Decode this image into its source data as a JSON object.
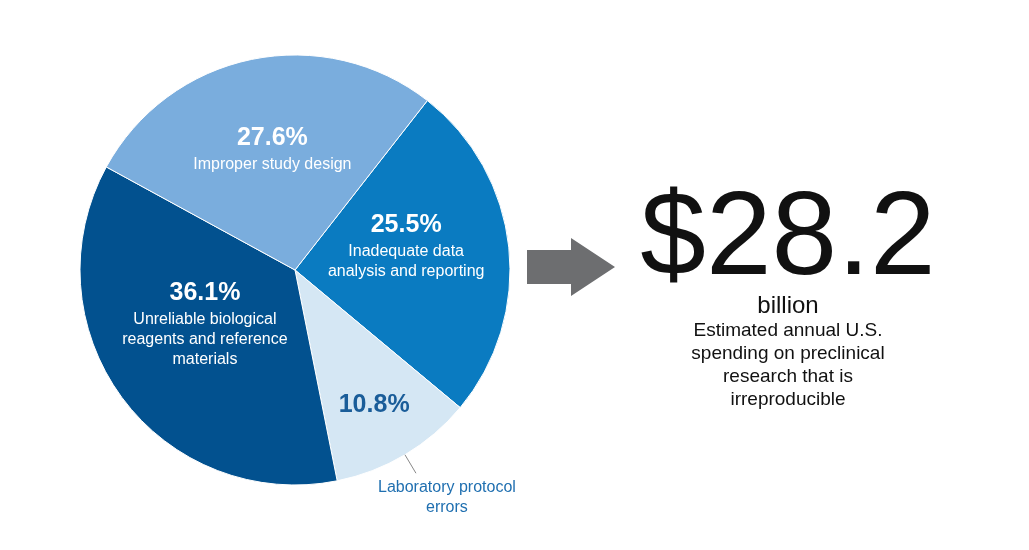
{
  "chart_data": {
    "type": "pie",
    "categories": [
      "Inadequate data analysis and reporting",
      "Laboratory protocol errors",
      "Unreliable biological reagents and reference materials",
      "Improper study design"
    ],
    "values": [
      25.5,
      10.8,
      36.1,
      27.6
    ],
    "colors": [
      "#0a7bc1",
      "#d5e7f4",
      "#02518f",
      "#7aaddd"
    ],
    "value_labels": [
      "25.5%",
      "10.8%",
      "36.1%",
      "27.6%"
    ],
    "legend": false,
    "annotations": [
      "$28.2",
      "billion",
      "Estimated annual U.S. spending on preclinical research that is irreproducible"
    ]
  }
}
